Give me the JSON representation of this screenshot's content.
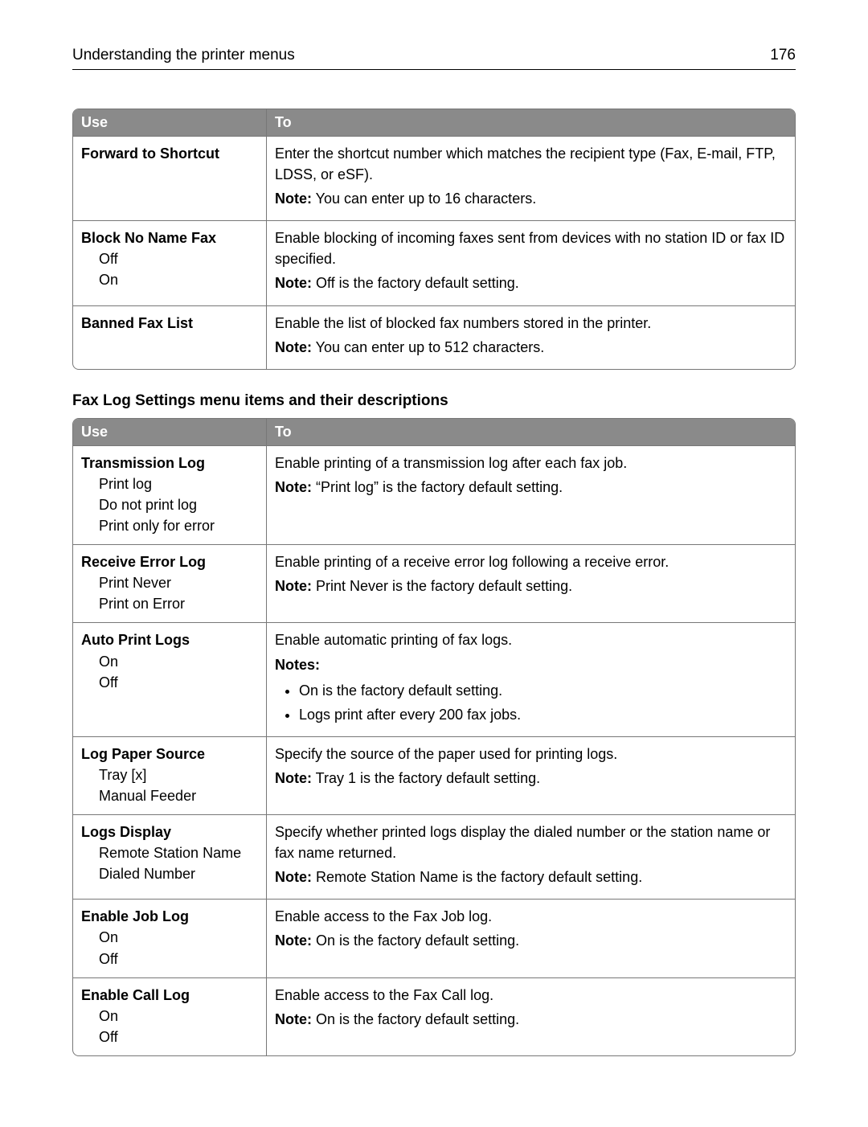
{
  "page": {
    "header_title": "Understanding the printer menus",
    "page_number": "176"
  },
  "table1": {
    "headers": {
      "use": "Use",
      "to": "To"
    },
    "rows": [
      {
        "name": "Forward to Shortcut",
        "options": [],
        "desc": "Enter the shortcut number which matches the recipient type (Fax, E-mail, FTP, LDSS, or eSF).",
        "note_label": "Note:",
        "note": " You can enter up to 16 characters."
      },
      {
        "name": "Block No Name Fax",
        "options": [
          "Off",
          "On"
        ],
        "desc": "Enable blocking of incoming faxes sent from devices with no station ID or fax ID specified.",
        "note_label": "Note:",
        "note": " Off is the factory default setting."
      },
      {
        "name": "Banned Fax List",
        "options": [],
        "desc": "Enable the list of blocked fax numbers stored in the printer.",
        "note_label": "Note:",
        "note": " You can enter up to 512 characters."
      }
    ]
  },
  "section2_title": "Fax Log Settings menu items and their descriptions",
  "table2": {
    "headers": {
      "use": "Use",
      "to": "To"
    },
    "rows": [
      {
        "name": "Transmission Log",
        "options": [
          "Print log",
          "Do not print log",
          "Print only for error"
        ],
        "desc": "Enable printing of a transmission log after each fax job.",
        "note_label": "Note:",
        "note": " “Print log” is the factory default setting."
      },
      {
        "name": "Receive Error Log",
        "options": [
          "Print Never",
          "Print on Error"
        ],
        "desc": "Enable printing of a receive error log following a receive error.",
        "note_label": "Note:",
        "note": " Print Never is the factory default setting."
      },
      {
        "name": "Auto Print Logs",
        "options": [
          "On",
          "Off"
        ],
        "desc": "Enable automatic printing of fax logs.",
        "notes_label": "Notes:",
        "bullets": [
          "On is the factory default setting.",
          "Logs print after every 200 fax jobs."
        ]
      },
      {
        "name": "Log Paper Source",
        "options": [
          "Tray [x]",
          "Manual Feeder"
        ],
        "desc": "Specify the source of the paper used for printing logs.",
        "note_label": "Note:",
        "note": " Tray 1 is the factory default setting."
      },
      {
        "name": "Logs Display",
        "options": [
          "Remote Station Name",
          "Dialed Number"
        ],
        "desc": "Specify whether printed logs display the dialed number or the station name or fax name returned.",
        "note_label": "Note:",
        "note": " Remote Station Name is the factory default setting."
      },
      {
        "name": "Enable Job Log",
        "options": [
          "On",
          "Off"
        ],
        "desc": "Enable access to the Fax Job log.",
        "note_label": "Note:",
        "note": " On is the factory default setting."
      },
      {
        "name": "Enable Call Log",
        "options": [
          "On",
          "Off"
        ],
        "desc": "Enable access to the Fax Call log.",
        "note_label": "Note:",
        "note": " On is the factory default setting."
      }
    ]
  }
}
